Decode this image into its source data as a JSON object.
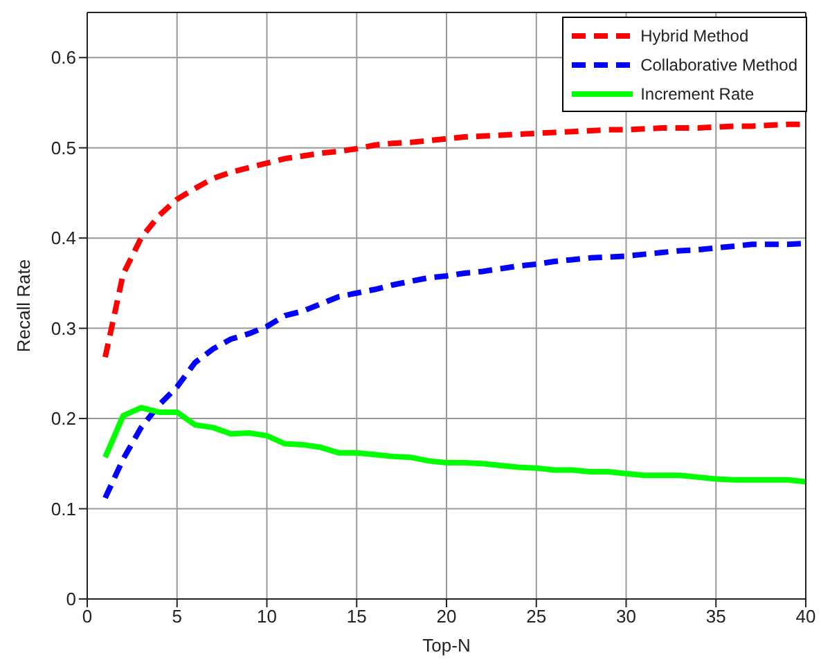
{
  "chart_data": {
    "type": "line",
    "xlabel": "Top-N",
    "ylabel": "Recall Rate",
    "x": [
      1,
      2,
      3,
      4,
      5,
      6,
      7,
      8,
      9,
      10,
      11,
      12,
      13,
      14,
      15,
      16,
      17,
      18,
      19,
      20,
      21,
      22,
      23,
      24,
      25,
      26,
      27,
      28,
      29,
      30,
      31,
      32,
      33,
      34,
      35,
      36,
      37,
      38,
      39,
      40
    ],
    "series": [
      {
        "name": "Hybrid Method",
        "color": "#ff0000",
        "line_style": "dashed",
        "values": [
          0.268,
          0.36,
          0.4,
          0.425,
          0.443,
          0.455,
          0.466,
          0.473,
          0.478,
          0.483,
          0.488,
          0.491,
          0.494,
          0.496,
          0.499,
          0.503,
          0.505,
          0.506,
          0.508,
          0.51,
          0.512,
          0.513,
          0.514,
          0.515,
          0.516,
          0.517,
          0.518,
          0.519,
          0.52,
          0.52,
          0.521,
          0.522,
          0.522,
          0.522,
          0.523,
          0.524,
          0.524,
          0.525,
          0.526,
          0.526
        ]
      },
      {
        "name": "Collaborative Method",
        "color": "#0000ff",
        "line_style": "dashed",
        "values": [
          0.112,
          0.155,
          0.19,
          0.215,
          0.235,
          0.262,
          0.277,
          0.288,
          0.294,
          0.302,
          0.314,
          0.319,
          0.327,
          0.335,
          0.339,
          0.343,
          0.348,
          0.352,
          0.356,
          0.358,
          0.361,
          0.363,
          0.366,
          0.369,
          0.371,
          0.374,
          0.376,
          0.378,
          0.379,
          0.38,
          0.382,
          0.384,
          0.386,
          0.387,
          0.389,
          0.391,
          0.393,
          0.393,
          0.393,
          0.394
        ]
      },
      {
        "name": "Increment Rate",
        "color": "#00ff00",
        "line_style": "solid",
        "values": [
          0.157,
          0.203,
          0.212,
          0.207,
          0.207,
          0.193,
          0.19,
          0.183,
          0.184,
          0.181,
          0.172,
          0.171,
          0.168,
          0.162,
          0.162,
          0.16,
          0.158,
          0.157,
          0.153,
          0.151,
          0.151,
          0.15,
          0.148,
          0.146,
          0.145,
          0.143,
          0.143,
          0.141,
          0.141,
          0.139,
          0.137,
          0.137,
          0.137,
          0.135,
          0.133,
          0.132,
          0.132,
          0.132,
          0.132,
          0.13
        ]
      }
    ],
    "xlim": [
      0,
      40
    ],
    "xticks": [
      0,
      5,
      10,
      15,
      20,
      25,
      30,
      35,
      40
    ],
    "ylim": [
      0,
      0.65
    ],
    "yticks": [
      0,
      0.1,
      0.2,
      0.3,
      0.4,
      0.5,
      0.6
    ],
    "grid": true,
    "legend": "top right",
    "marker": "none"
  }
}
